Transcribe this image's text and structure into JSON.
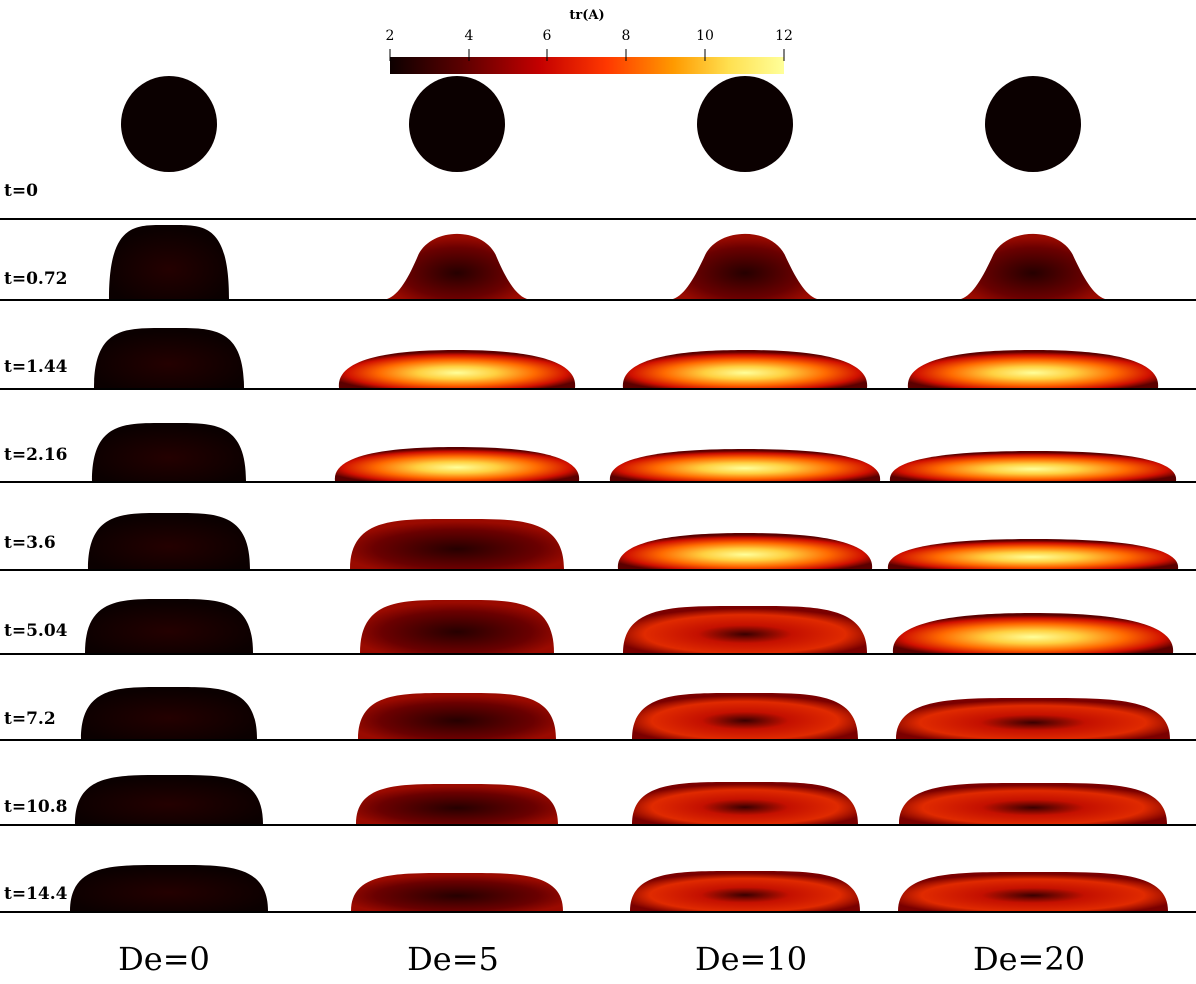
{
  "colorbar": {
    "title": "tr(A)",
    "ticks": [
      "2",
      "4",
      "6",
      "8",
      "10",
      "12"
    ],
    "min": 2,
    "max": 12,
    "colormap": [
      "#0d0000",
      "#5a0000",
      "#c40000",
      "#ff3800",
      "#ff9a00",
      "#ffe050",
      "#ffff9a"
    ]
  },
  "rows": [
    {
      "label": "t=0"
    },
    {
      "label": "t=0.72"
    },
    {
      "label": "t=1.44"
    },
    {
      "label": "t=2.16"
    },
    {
      "label": "t=3.6"
    },
    {
      "label": "t=5.04"
    },
    {
      "label": "t=7.2"
    },
    {
      "label": "t=10.8"
    },
    {
      "label": "t=14.4"
    }
  ],
  "columns": [
    {
      "label": "De=0"
    },
    {
      "label": "De=5"
    },
    {
      "label": "De=10"
    },
    {
      "label": "De=20"
    }
  ]
}
